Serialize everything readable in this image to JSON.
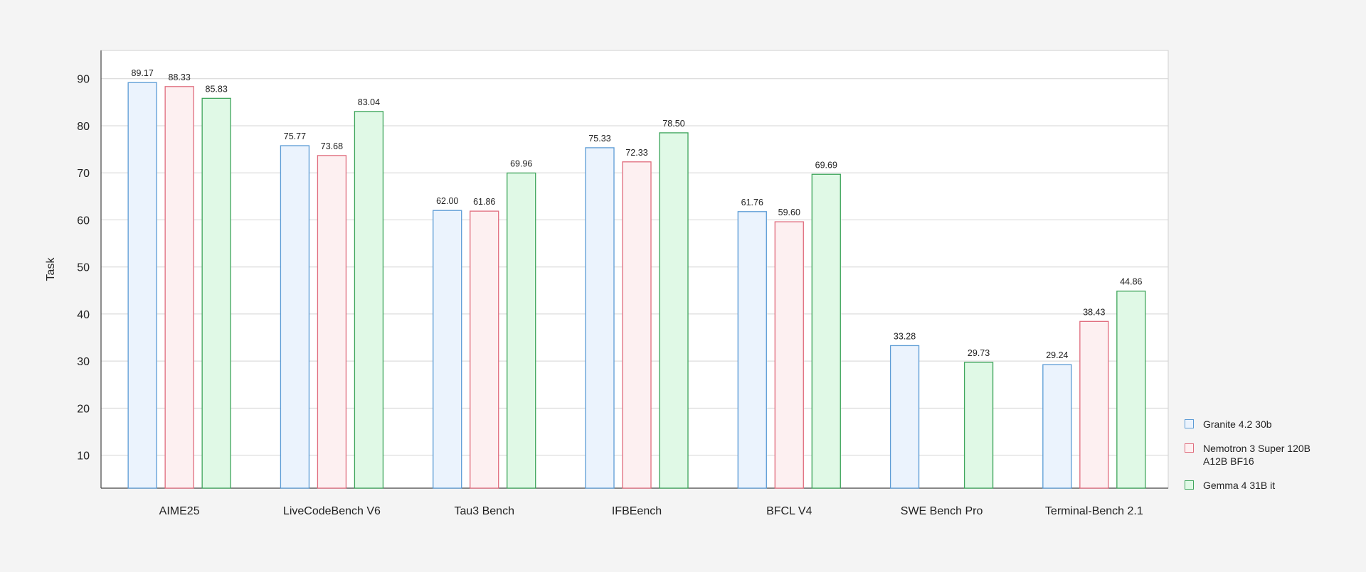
{
  "chart_data": {
    "type": "bar",
    "ylabel": "Task",
    "xlabel": "",
    "ylim": [
      3,
      96
    ],
    "yticks": [
      10,
      20,
      30,
      40,
      50,
      60,
      70,
      80,
      90
    ],
    "grid": true,
    "legend_position": "right-bottom",
    "categories": [
      "AIME25",
      "LiveCodeBench V6",
      "Tau3 Bench",
      "IFBEench",
      "BFCL V4",
      "SWE Bench Pro",
      "Terminal-Bench 2.1"
    ],
    "series": [
      {
        "name": "Granite 4.2 30b",
        "fill": "#ebf3fd",
        "stroke": "#5b9bd5",
        "values": [
          89.17,
          75.77,
          62.0,
          75.33,
          61.76,
          33.28,
          29.24
        ],
        "labels": [
          "89.17",
          "75.77",
          "62.00",
          "75.33",
          "61.76",
          "33.28",
          "29.24"
        ]
      },
      {
        "name": "Nemotron 3 Super 120B A12B BF16",
        "fill": "#fdf0f1",
        "stroke": "#e06c7d",
        "values": [
          88.33,
          73.68,
          61.86,
          72.33,
          59.6,
          null,
          38.43
        ],
        "labels": [
          "88.33",
          "73.68",
          "61.86",
          "72.33",
          "59.60",
          "",
          "38.43"
        ]
      },
      {
        "name": "Gemma 4 31B it",
        "fill": "#e0f9e6",
        "stroke": "#3ea55b",
        "values": [
          85.83,
          83.04,
          69.96,
          78.5,
          69.69,
          29.73,
          44.86
        ],
        "labels": [
          "85.83",
          "83.04",
          "69.96",
          "78.50",
          "69.69",
          "29.73",
          "44.86"
        ]
      }
    ]
  }
}
